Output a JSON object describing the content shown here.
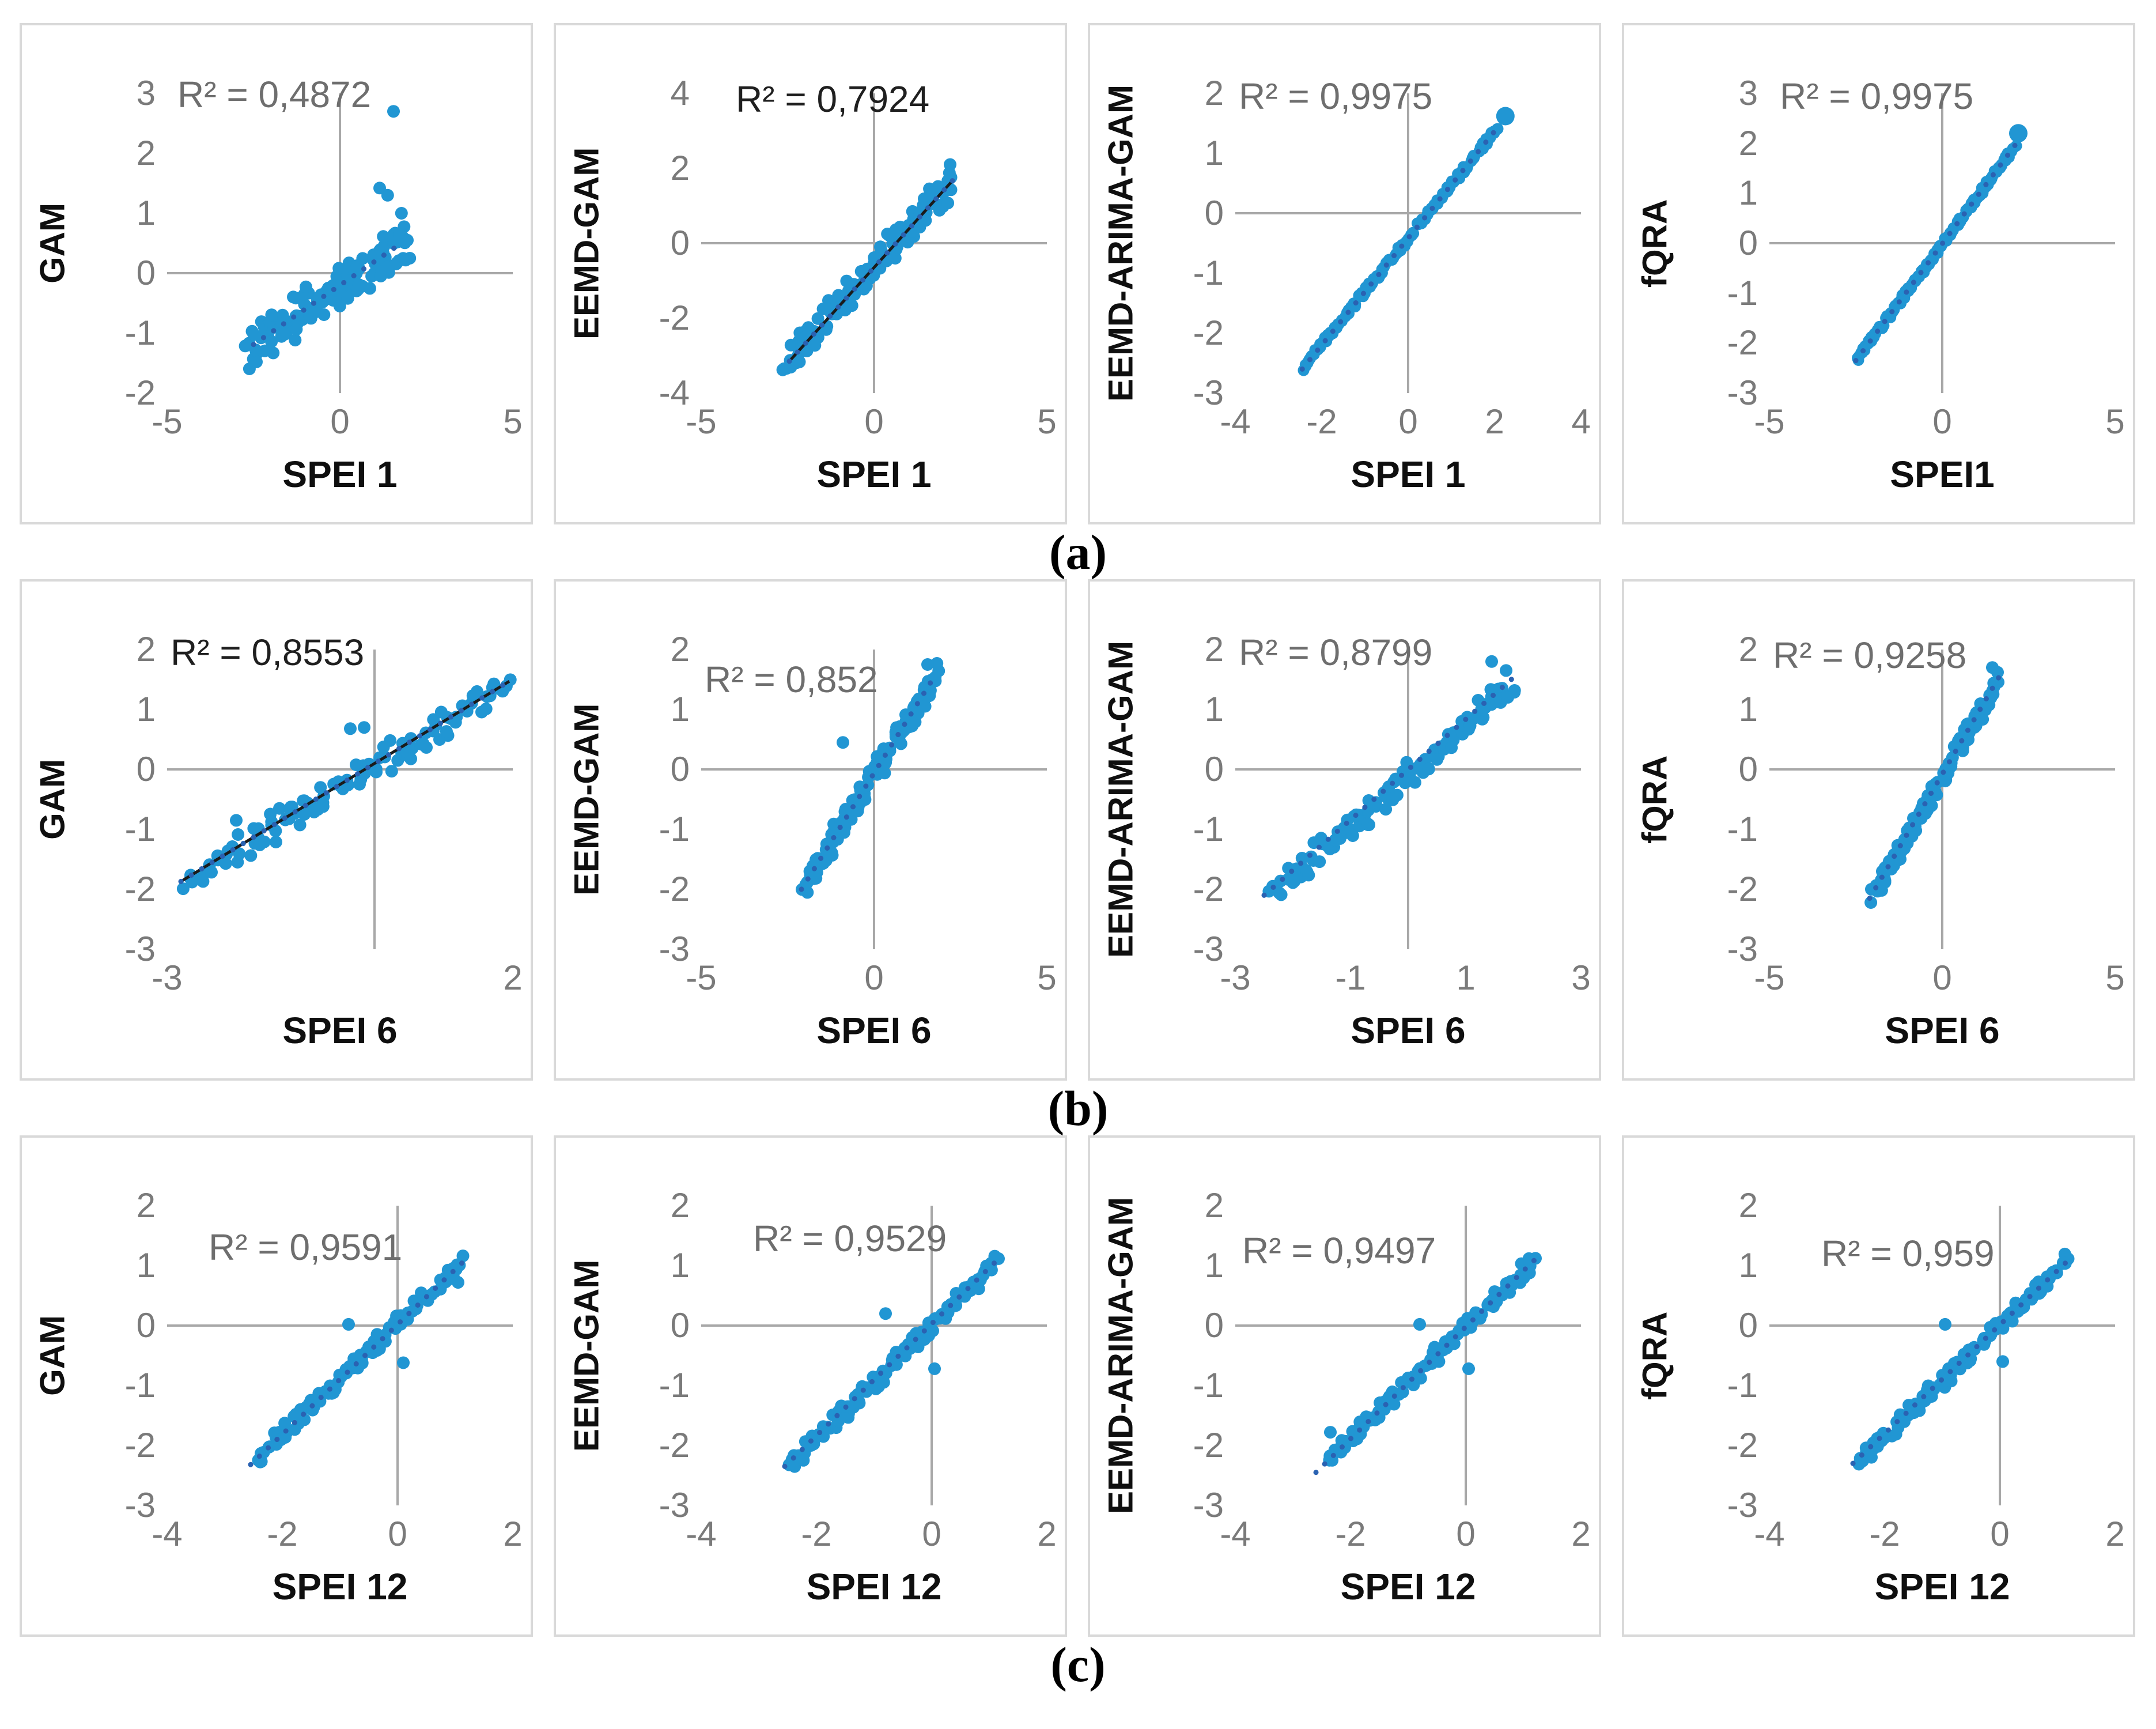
{
  "figure": {
    "captions": [
      "(a)",
      "(b)",
      "(c)"
    ],
    "colors": {
      "point": "#2196d3",
      "trend_dot": "#2a62b2",
      "trend_solid": "#1b1b1b",
      "axis": "#a8a8a8",
      "tick_text": "#7a7a7a",
      "r2_gray": "#6e6e6e",
      "r2_dark": "#1f1f1f",
      "title_text": "#0f0f0f",
      "border": "#d9d9d9"
    }
  },
  "chart_data": [
    {
      "id": "a1",
      "row": "a",
      "type": "scatter",
      "ylabel": "GAM",
      "xlabel": "SPEI 1",
      "r2_label": "R² = 0,4872",
      "r2_value": 0.4872,
      "r2_tone": "gray",
      "r2_pos": {
        "left": "3%",
        "top": "-6.5%"
      },
      "xlim": [
        -5,
        5
      ],
      "ylim": [
        -2,
        3
      ],
      "xticks": [
        -5,
        0,
        5
      ],
      "yticks": [
        3,
        2,
        1,
        0,
        -1,
        -2
      ],
      "grid": false,
      "legend": false,
      "trend": {
        "style": "dotted",
        "x1": -2.5,
        "y1": -1.19,
        "x2": 1.8,
        "y2": 0.51
      },
      "scatter": {
        "seed": 101,
        "n": 135,
        "x_min": -2.6,
        "x_max": 2.0,
        "slope": 0.4,
        "intercept": -0.2,
        "noise": 0.45,
        "jitter": 0.3,
        "dot_r": 11
      },
      "outliers": [
        [
          1.55,
          2.7
        ],
        [
          1.15,
          1.42
        ],
        [
          1.38,
          1.3
        ],
        [
          1.78,
          1.0
        ],
        [
          1.95,
          0.55
        ]
      ],
      "big_dot": null
    },
    {
      "id": "a2",
      "row": "a",
      "type": "scatter",
      "ylabel": "EEMD-GAM",
      "xlabel": "SPEI 1",
      "r2_label": "R² = 0,7924",
      "r2_value": 0.7924,
      "r2_tone": "dark",
      "r2_pos": {
        "left": "10%",
        "top": "-5%"
      },
      "xlim": [
        -5,
        5
      ],
      "ylim": [
        -4,
        4
      ],
      "xticks": [
        -5,
        0,
        5
      ],
      "yticks": [
        4,
        2,
        0,
        -2,
        -4
      ],
      "grid": false,
      "legend": false,
      "trend": {
        "style": "solid",
        "x1": -2.45,
        "y1": -3.15,
        "x2": 2.3,
        "y2": 1.7
      },
      "scatter": {
        "seed": 202,
        "n": 150,
        "x_min": -2.55,
        "x_max": 2.2,
        "slope": 1.02,
        "intercept": -0.62,
        "noise": 0.5,
        "jitter": 0.25,
        "dot_r": 11
      },
      "outliers": [
        [
          2.2,
          2.1
        ]
      ],
      "big_dot": null
    },
    {
      "id": "a3",
      "row": "a",
      "type": "scatter",
      "ylabel": "EEMD-ARIMA-GAM",
      "xlabel": "SPEI 1",
      "r2_label": "R² = 0,9975",
      "r2_value": 0.9975,
      "r2_tone": "gray",
      "r2_pos": {
        "left": "1%",
        "top": "-6%"
      },
      "xlim": [
        -4,
        4
      ],
      "ylim": [
        -3,
        2
      ],
      "xticks": [
        -4,
        -2,
        0,
        2,
        4
      ],
      "yticks": [
        2,
        1,
        0,
        -1,
        -2,
        -3
      ],
      "grid": false,
      "legend": false,
      "trend": {
        "style": "dotted",
        "x1": -2.45,
        "y1": -2.6,
        "x2": 2.15,
        "y2": 1.5
      },
      "scatter": {
        "seed": 303,
        "n": 150,
        "x_min": -2.4,
        "x_max": 2.1,
        "slope": 0.89,
        "intercept": -0.42,
        "noise": 0.07,
        "jitter": 0.1,
        "dot_r": 10
      },
      "outliers": [
        [
          -2.42,
          -2.62
        ]
      ],
      "big_dot": [
        2.25,
        1.62,
        16
      ]
    },
    {
      "id": "a4",
      "row": "a",
      "type": "scatter",
      "ylabel": "fQRA",
      "xlabel": "SPEI1",
      "r2_label": "R² = 0,9975",
      "r2_value": 0.9975,
      "r2_tone": "gray",
      "r2_pos": {
        "left": "3%",
        "top": "-6%"
      },
      "xlim": [
        -5,
        5
      ],
      "ylim": [
        -3,
        3
      ],
      "xticks": [
        -5,
        0,
        5
      ],
      "yticks": [
        3,
        2,
        1,
        0,
        -1,
        -2,
        -3
      ],
      "grid": false,
      "legend": false,
      "trend": {
        "style": "dotted",
        "x1": -2.5,
        "y1": -2.35,
        "x2": 2.2,
        "y2": 2.05
      },
      "scatter": {
        "seed": 404,
        "n": 150,
        "x_min": -2.45,
        "x_max": 2.1,
        "slope": 0.93,
        "intercept": -0.03,
        "noise": 0.08,
        "jitter": 0.1,
        "dot_r": 10
      },
      "outliers": [
        [
          -2.45,
          -2.3
        ]
      ],
      "big_dot": [
        2.2,
        2.2,
        16
      ]
    },
    {
      "id": "b1",
      "row": "b",
      "type": "scatter",
      "ylabel": "GAM",
      "xlabel": "SPEI 6",
      "r2_label": "R² = 0,8553",
      "r2_value": 0.8553,
      "r2_tone": "dark",
      "r2_pos": {
        "left": "1%",
        "top": "-6%"
      },
      "xlim": [
        -3,
        2
      ],
      "ylim": [
        -3,
        2
      ],
      "xticks": [
        -3,
        2
      ],
      "yticks": [
        2,
        1,
        0,
        -1,
        -2,
        -3
      ],
      "grid": false,
      "legend": false,
      "trend": {
        "style": "solid",
        "x1": -2.8,
        "y1": -1.87,
        "x2": 1.95,
        "y2": 1.47
      },
      "scatter": {
        "seed": 505,
        "n": 115,
        "x_min": -2.75,
        "x_max": 1.9,
        "slope": 0.7,
        "intercept": 0.07,
        "noise": 0.33,
        "jitter": 0.2,
        "dot_r": 11
      },
      "outliers": [
        [
          -0.35,
          0.68
        ],
        [
          -0.15,
          0.7
        ],
        [
          -2.0,
          -0.85
        ]
      ],
      "big_dot": null
    },
    {
      "id": "b2",
      "row": "b",
      "type": "scatter",
      "ylabel": "EEMD-GAM",
      "xlabel": "SPEI 6",
      "r2_label": "R² = 0,852",
      "r2_value": 0.852,
      "r2_tone": "gray",
      "r2_pos": {
        "left": "1%",
        "top": "3%"
      },
      "xlim": [
        -5,
        5
      ],
      "ylim": [
        -3,
        2
      ],
      "xticks": [
        -5,
        0,
        5
      ],
      "yticks": [
        2,
        1,
        0,
        -1,
        -2,
        -3
      ],
      "grid": false,
      "legend": false,
      "trend": {
        "style": "dotted",
        "x1": -2.1,
        "y1": -2.0,
        "x2": 1.8,
        "y2": 1.6
      },
      "scatter": {
        "seed": 606,
        "n": 125,
        "x_min": -2.05,
        "x_max": 1.85,
        "slope": 0.92,
        "intercept": -0.1,
        "noise": 0.28,
        "jitter": 0.2,
        "dot_r": 11
      },
      "outliers": [
        [
          1.55,
          1.75
        ],
        [
          -0.9,
          0.45
        ]
      ],
      "big_dot": null
    },
    {
      "id": "b3",
      "row": "b",
      "type": "scatter",
      "ylabel": "EEMD-ARIMA-GAM",
      "xlabel": "SPEI 6",
      "r2_label": "R² = 0,8799",
      "r2_value": 0.8799,
      "r2_tone": "gray",
      "r2_pos": {
        "left": "1%",
        "top": "-6%"
      },
      "xlim": [
        -3,
        3
      ],
      "ylim": [
        -3,
        2
      ],
      "xticks": [
        -3,
        -1,
        1,
        3
      ],
      "yticks": [
        2,
        1,
        0,
        -1,
        -2,
        -3
      ],
      "grid": false,
      "legend": false,
      "trend": {
        "style": "dotted",
        "x1": -2.5,
        "y1": -2.1,
        "x2": 1.85,
        "y2": 1.55
      },
      "scatter": {
        "seed": 707,
        "n": 125,
        "x_min": -2.3,
        "x_max": 1.85,
        "slope": 0.84,
        "intercept": -0.12,
        "noise": 0.28,
        "jitter": 0.2,
        "dot_r": 11
      },
      "outliers": [
        [
          1.45,
          1.8
        ],
        [
          1.7,
          1.65
        ],
        [
          -2.35,
          -1.95
        ]
      ],
      "big_dot": null
    },
    {
      "id": "b4",
      "row": "b",
      "type": "scatter",
      "ylabel": "fQRA",
      "xlabel": "SPEI 6",
      "r2_label": "R² = 0,9258",
      "r2_value": 0.9258,
      "r2_tone": "gray",
      "r2_pos": {
        "left": "1%",
        "top": "-5%"
      },
      "xlim": [
        -5,
        5
      ],
      "ylim": [
        -3,
        2
      ],
      "xticks": [
        -5,
        0,
        5
      ],
      "yticks": [
        2,
        1,
        0,
        -1,
        -2,
        -3
      ],
      "grid": false,
      "legend": false,
      "trend": {
        "style": "dotted",
        "x1": -2.1,
        "y1": -2.15,
        "x2": 1.65,
        "y2": 1.55
      },
      "scatter": {
        "seed": 808,
        "n": 125,
        "x_min": -2.0,
        "x_max": 1.6,
        "slope": 0.98,
        "intercept": -0.12,
        "noise": 0.2,
        "jitter": 0.15,
        "dot_r": 11
      },
      "outliers": [
        [
          1.45,
          1.7
        ],
        [
          1.6,
          1.62
        ],
        [
          -2.05,
          -2.0
        ]
      ],
      "big_dot": null
    },
    {
      "id": "c1",
      "row": "c",
      "type": "scatter",
      "ylabel": "GAM",
      "xlabel": "SPEI 12",
      "r2_label": "R² = 0,9591",
      "r2_value": 0.9591,
      "r2_tone": "gray",
      "r2_pos": {
        "left": "12%",
        "top": "7%"
      },
      "xlim": [
        -4,
        2
      ],
      "ylim": [
        -3,
        2
      ],
      "xticks": [
        -4,
        -2,
        0,
        2
      ],
      "yticks": [
        2,
        1,
        0,
        -1,
        -2,
        -3
      ],
      "grid": false,
      "legend": false,
      "trend": {
        "style": "dotted",
        "x1": -2.55,
        "y1": -2.32,
        "x2": 1.2,
        "y2": 1.12
      },
      "scatter": {
        "seed": 909,
        "n": 115,
        "x_min": -2.45,
        "x_max": 1.15,
        "slope": 0.92,
        "intercept": 0.03,
        "noise": 0.17,
        "jitter": 0.12,
        "dot_r": 11
      },
      "outliers": [
        [
          -0.85,
          0.02
        ],
        [
          0.1,
          -0.62
        ],
        [
          1.05,
          0.72
        ]
      ],
      "big_dot": null
    },
    {
      "id": "c2",
      "row": "c",
      "type": "scatter",
      "ylabel": "EEMD-GAM",
      "xlabel": "SPEI 12",
      "r2_label": "R² = 0,9529",
      "r2_value": 0.9529,
      "r2_tone": "gray",
      "r2_pos": {
        "left": "15%",
        "top": "4%"
      },
      "xlim": [
        -4,
        2
      ],
      "ylim": [
        -3,
        2
      ],
      "xticks": [
        -4,
        -2,
        0,
        2
      ],
      "yticks": [
        2,
        1,
        0,
        -1,
        -2,
        -3
      ],
      "grid": false,
      "legend": false,
      "trend": {
        "style": "dotted",
        "x1": -2.55,
        "y1": -2.35,
        "x2": 1.2,
        "y2": 1.15
      },
      "scatter": {
        "seed": 1010,
        "n": 115,
        "x_min": -2.45,
        "x_max": 1.15,
        "slope": 0.94,
        "intercept": 0.0,
        "noise": 0.18,
        "jitter": 0.12,
        "dot_r": 11
      },
      "outliers": [
        [
          -0.8,
          0.2
        ],
        [
          0.05,
          -0.72
        ],
        [
          -2.3,
          -2.2
        ]
      ],
      "big_dot": null
    },
    {
      "id": "c3",
      "row": "c",
      "type": "scatter",
      "ylabel": "EEMD-ARIMA-GAM",
      "xlabel": "SPEI 12",
      "r2_label": "R² = 0,9497",
      "r2_value": 0.9497,
      "r2_tone": "gray",
      "r2_pos": {
        "left": "2%",
        "top": "8%"
      },
      "xlim": [
        -4,
        2
      ],
      "ylim": [
        -3,
        2
      ],
      "xticks": [
        -4,
        -2,
        0,
        2
      ],
      "yticks": [
        2,
        1,
        0,
        -1,
        -2,
        -3
      ],
      "grid": false,
      "legend": false,
      "trend": {
        "style": "dotted",
        "x1": -2.6,
        "y1": -2.45,
        "x2": 1.2,
        "y2": 1.1
      },
      "scatter": {
        "seed": 1111,
        "n": 115,
        "x_min": -2.45,
        "x_max": 1.15,
        "slope": 0.93,
        "intercept": -0.02,
        "noise": 0.18,
        "jitter": 0.12,
        "dot_r": 11
      },
      "outliers": [
        [
          -2.35,
          -1.78
        ],
        [
          -0.8,
          0.02
        ],
        [
          0.05,
          -0.72
        ]
      ],
      "big_dot": null
    },
    {
      "id": "c4",
      "row": "c",
      "type": "scatter",
      "ylabel": "fQRA",
      "xlabel": "SPEI 12",
      "r2_label": "R² = 0,959",
      "r2_value": 0.959,
      "r2_tone": "gray",
      "r2_pos": {
        "left": "15%",
        "top": "9%"
      },
      "xlim": [
        -4,
        2
      ],
      "ylim": [
        -3,
        2
      ],
      "xticks": [
        -4,
        -2,
        0,
        2
      ],
      "yticks": [
        2,
        1,
        0,
        -1,
        -2,
        -3
      ],
      "grid": false,
      "legend": false,
      "trend": {
        "style": "dotted",
        "x1": -2.55,
        "y1": -2.3,
        "x2": 1.2,
        "y2": 1.1
      },
      "scatter": {
        "seed": 1212,
        "n": 115,
        "x_min": -2.45,
        "x_max": 1.15,
        "slope": 0.93,
        "intercept": 0.0,
        "noise": 0.16,
        "jitter": 0.12,
        "dot_r": 11
      },
      "outliers": [
        [
          -0.95,
          0.02
        ],
        [
          0.05,
          -0.6
        ],
        [
          1.1,
          1.05
        ]
      ],
      "big_dot": null
    }
  ]
}
